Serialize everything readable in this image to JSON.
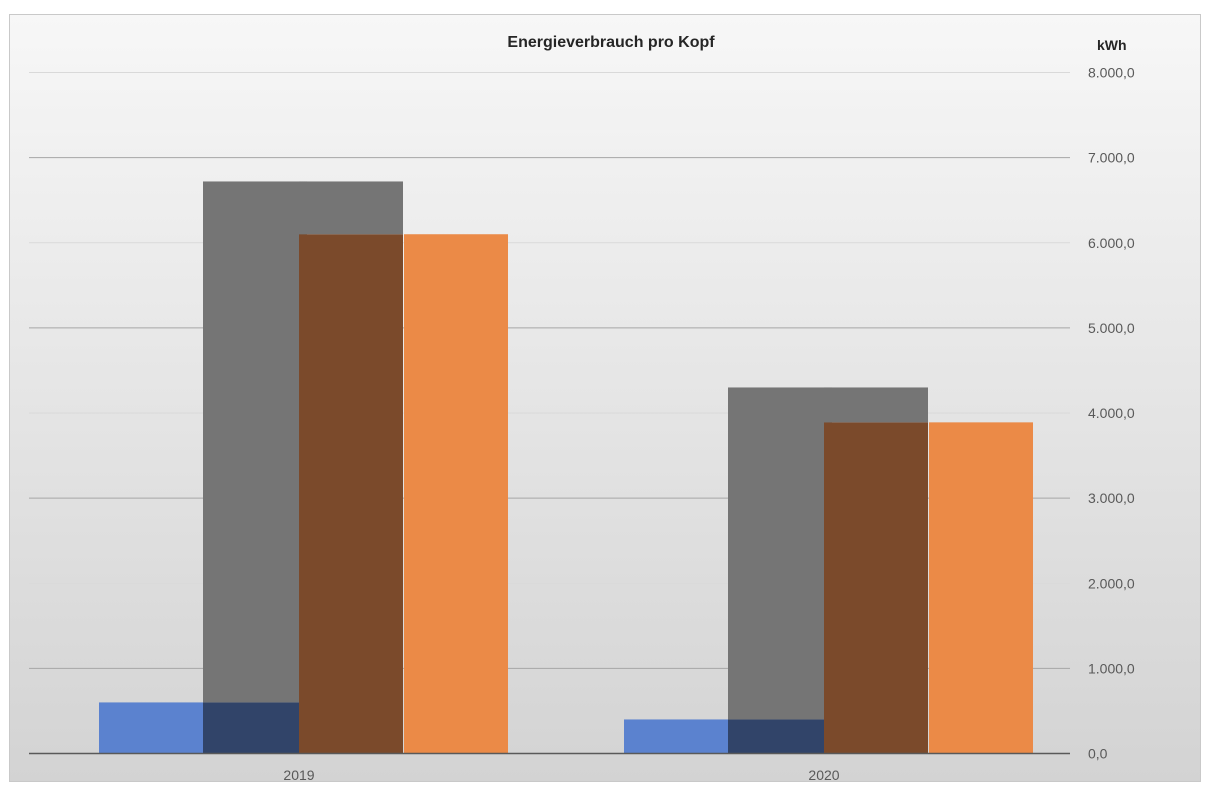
{
  "chart_data": {
    "type": "bar",
    "title": "Energieverbrauch  pro Kopf",
    "ylabel": "kWh",
    "xlabel": "",
    "categories": [
      "2019",
      "2020"
    ],
    "ylim": [
      0,
      8000
    ],
    "yticks": [
      0,
      1000,
      2000,
      3000,
      4000,
      5000,
      6000,
      7000,
      8000
    ],
    "ytick_labels": [
      "0,0",
      "1.000,0",
      "2.000,0",
      "3.000,0",
      "4.000,0",
      "5.000,0",
      "6.000,0",
      "7.000,0",
      "8.000,0"
    ],
    "y_axis_side": "right",
    "grid": true,
    "overlapping_bars": true,
    "series": [
      {
        "values": [
          600,
          400
        ],
        "color": "#5b82cf"
      },
      {
        "values": [
          6720,
          4300
        ],
        "color": "#757575"
      },
      {
        "values": [
          6100,
          3890
        ],
        "color": "#eb8a47"
      }
    ],
    "overlap_colors": {
      "blue_gray": "#314469",
      "gray_orange": "#7b4a2b"
    },
    "background_gradient": [
      "#f7f7f7",
      "#d3d3d3"
    ]
  }
}
